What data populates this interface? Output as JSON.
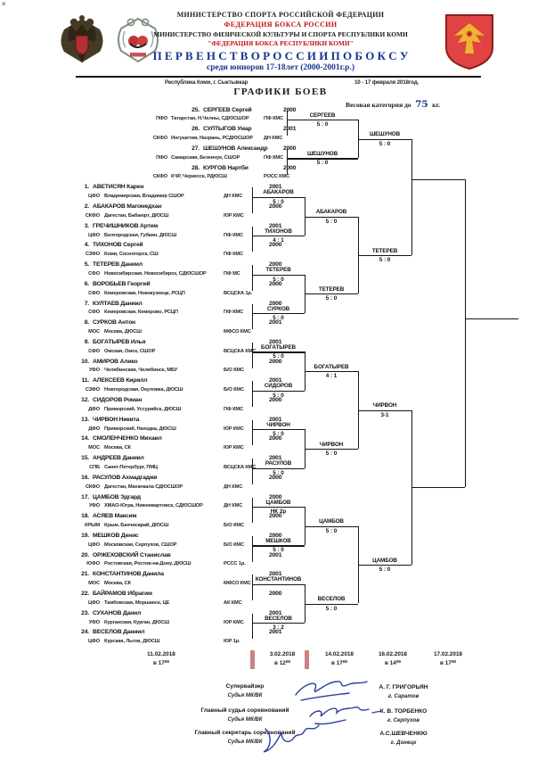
{
  "header": {
    "corner_mark": "×",
    "line1": "МИНИСТЕРСТВО СПОРТА РОССИЙСКОЙ ФЕДЕРАЦИИ",
    "line2": "ФЕДЕРАЦИЯ БОКСА РОССИИ",
    "line3": "МИНИСТЕРСТВО ФИЗИЧЕСКОЙ КУЛЬТУРЫ И СПОРТА РЕСПУБЛИКИ КОМИ",
    "line4": "\"ФЕДЕРАЦИЯ БОКСА РЕСПУБЛИКИ КОМИ\"",
    "title": "П Е Р В Е Н С Т В О   Р О С С И И   П О   Б О К С У",
    "subtitle": "среди юниоров 17-18лет (2000-2001г.р.)",
    "venue": "Республика Коми, г. Сыктывкар",
    "date_range": "10 - 17 февраля 2018год.",
    "section_title": "ГРАФИКИ БОЕВ",
    "weight_prefix": "Весовая категория до",
    "weight_value": "75",
    "weight_suffix": "кг."
  },
  "fighters": [
    {
      "no": "25.",
      "name": "СЕРГЕЕВ Сергей",
      "year": "2000",
      "code": "ПФО",
      "region": "Татарстан, Н.Челны, СДЮСШОР",
      "qual": "ПФ КМС"
    },
    {
      "no": "26.",
      "name": "СУЛТЫГОВ Умар",
      "year": "2001",
      "code": "СКФО",
      "region": "Ингушетия, Назрань, РСДЮСШОР",
      "qual": "ДН КМС"
    },
    {
      "no": "27.",
      "name": "ШЕШУНОВ Александр",
      "year": "2000",
      "code": "ПФО",
      "region": "Самарская, Безенчук, СШОР",
      "qual": "ПФ КМС"
    },
    {
      "no": "28.",
      "name": "КУРГОВ Нартби",
      "year": "2000",
      "code": "СКФО",
      "region": "КЧР, Черкесск,  РДЮСШ",
      "qual": "РОСС КМС"
    },
    {
      "no": "1.",
      "name": "АВЕТИСЯН Карен",
      "year": "2001",
      "code": "ЦФО",
      "region": "Владимирская, Владимир СШОР",
      "qual": "ДН  КМС"
    },
    {
      "no": "2.",
      "name": "АБАКАРОВ Магомедхан",
      "year": "2000",
      "code": "СКФО",
      "region": "Дагестан, Бабаюрт,  ДЮСШ",
      "qual": "ЮР КМС"
    },
    {
      "no": "3.",
      "name": "ГРЕЧИШНИКОВ Артем",
      "year": "2001",
      "code": "ЦФО",
      "region": "Белгородская, Губкин, ДЮСШ",
      "qual": "ПФ  КМС"
    },
    {
      "no": "4.",
      "name": "ТИХОНОВ Сергей",
      "year": "2000",
      "code": "СЗФО",
      "region": "Коми,  Сосногорск,  СШ",
      "qual": "ПФ КМС"
    },
    {
      "no": "5.",
      "name": "ТЕТЕРЕВ Даниил",
      "year": "2000",
      "code": "СФО",
      "region": "Новосибирская, Новосибирск, СДЮСШОР",
      "qual": "ПФ  МС"
    },
    {
      "no": "6.",
      "name": "ВОРОБЬЕВ Георгий",
      "year": "2000",
      "code": "СФО",
      "region": "Кемеровская, Новокузнецк, РСЦП",
      "qual": "ВСЦСКА  1р."
    },
    {
      "no": "7.",
      "name": "КУЛТАЕВ Даниил",
      "year": "2000",
      "code": "СФО",
      "region": "Кемеровская, Кемерово, РСЦП",
      "qual": "ПФ КМС"
    },
    {
      "no": "8.",
      "name": "СУРКОВ Антон",
      "year": "2001",
      "code": "МОС",
      "region": "Москва, ДЮСШ",
      "qual": "МФСО КМС"
    },
    {
      "no": "9.",
      "name": "БОГАТЫРЕВ Илья",
      "year": "2001",
      "code": "СФО",
      "region": "Омская, Омск, СШОР",
      "qual": "ВСЦСКА КМС"
    },
    {
      "no": "10.",
      "name": "АМИРОВ Алико",
      "year": "2000",
      "code": "УФО",
      "region": "Челябинская, Челябинск, МБУ",
      "qual": "Б/О КМС"
    },
    {
      "no": "11.",
      "name": "АЛЕКСЕЕВ Кирилл",
      "year": "2001",
      "code": "СЗФО",
      "region": "Новгородская,  Окуловка, ДЮСШ",
      "qual": "Б/О КМС"
    },
    {
      "no": "12.",
      "name": "СИДОРОВ Роман",
      "year": "2000",
      "code": "ДФО",
      "region": "Приморский, Уссурийск, ДЮСШ",
      "qual": "ПФ КМС"
    },
    {
      "no": "13.",
      "name": "ЧИРВОН Никита",
      "year": "2001",
      "code": "ДФО",
      "region": "Приморский, Находка, ДЮСШ",
      "qual": "ЮР КМС"
    },
    {
      "no": "14.",
      "name": "СМОЛЕНЧЕНКО Михаил",
      "year": "2000",
      "code": "МОС",
      "region": "Москва, СК",
      "qual": "ЮР КМС"
    },
    {
      "no": "15.",
      "name": "АНДРЕЕВ Даниил",
      "year": "2001",
      "code": "СПБ",
      "region": "Санкт-Петербург, ПМЦ",
      "qual": "ВСЦСКА КМС"
    },
    {
      "no": "16.",
      "name": "РАСУЛОВ Ахмадгаджи",
      "year": "2000",
      "code": "СКФО",
      "region": "Дагестан, Махачкала  СДЮСШОР",
      "qual": "ДН КМС"
    },
    {
      "no": "17.",
      "name": "ЦАМБОВ Эдгард",
      "year": "2000",
      "code": "УФО",
      "region": "ХМАО-Югра, Нижневартовск, СДЮСШОР",
      "qual": "ДН КМС"
    },
    {
      "no": "18.",
      "name": "АСЯЕВ Максим",
      "year": "2000",
      "code": "КРЫМ",
      "region": "Крым, Бахчисарай, ДЮСШ",
      "qual": "Б/О КМС"
    },
    {
      "no": "19.",
      "name": "МЕШКОВ Денис",
      "year": "2000",
      "code": "ЦФО",
      "region": "Московская, Серпухов, СШОР",
      "qual": "Б/О КМС"
    },
    {
      "no": "20.",
      "name": "ОРЖЕХОВСКИЙ Станислав",
      "year": "2001",
      "code": "ЮФО",
      "region": "Ростовская, Ростов-на-Дону, ДЮСШ",
      "qual": "РССС 1р."
    },
    {
      "no": "21.",
      "name": "КОНСТАНТИНОВ Данила",
      "year": "2001",
      "code": "МОС",
      "region": "Москва, СК",
      "qual": "МФСО КМС"
    },
    {
      "no": "22.",
      "name": "БАЙРАМОВ Ибрагим",
      "year": "2000",
      "code": "ЦФО",
      "region": "Тамбовская, Моршанск, ЦЕ",
      "qual": "АК  КМС"
    },
    {
      "no": "23.",
      "name": "СУХАНОВ Данил",
      "year": "2001",
      "code": "УФО",
      "region": "Курганская, Курган, ДЮСШ",
      "qual": "ЮР  КМС"
    },
    {
      "no": "24.",
      "name": "ВЕСЕЛОВ Даниил",
      "year": "2001",
      "code": "ЦФО",
      "region": "Курская, Льгов, ДЮСШ",
      "qual": "ЮР  1р."
    }
  ],
  "matches": {
    "r1": [
      {
        "winner": "СЕРГЕЕВ",
        "score": "5 : 0"
      },
      {
        "winner": "ШЕШУНОВ",
        "score": "5 : 0"
      },
      {
        "winner": "АБАКАРОВ",
        "score": "5 : 0"
      },
      {
        "winner": "ТИХОНОВ",
        "score": "4 : 1"
      },
      {
        "winner": "ТЕТЕРЕВ",
        "score": "5 : 0"
      },
      {
        "winner": "СУРКОВ",
        "score": "5 : 0"
      },
      {
        "winner": "БОГАТЫРЕВ",
        "score": "5 : 0"
      },
      {
        "winner": "СИДОРОВ",
        "score": "5 : 0"
      },
      {
        "winner": "ЧИРВОН",
        "score": "5 : 0"
      },
      {
        "winner": "РАСУЛОВ",
        "score": "5 : 0"
      },
      {
        "winner": "ЦАМБОВ",
        "score": "НК 2р"
      },
      {
        "winner": "МЕШКОВ",
        "score": "5 : 0"
      },
      {
        "winner": "КОНСТАНТИНОВ",
        "score": ""
      },
      {
        "winner": "ВЕСЕЛОВ",
        "score": "3 : 2"
      }
    ],
    "r2": [
      {
        "winner": "ШЕШУНОВ",
        "score": "5 : 0"
      },
      {
        "winner": "АБАКАРОВ",
        "score": "5 : 0"
      },
      {
        "winner": "ТЕТЕРЕВ",
        "score": "5 : 0"
      },
      {
        "winner": "БОГАТЫРЕВ",
        "score": "4 : 1"
      },
      {
        "winner": "ЧИРВОН",
        "score": "5 : 0"
      },
      {
        "winner": "ЦАМБОВ",
        "score": "5 : 0"
      },
      {
        "winner": "ВЕСЕЛОВ",
        "score": "5 : 0"
      }
    ],
    "r3": [
      {
        "winner": "ТЕТЕРЕВ",
        "score": "5 : 0"
      },
      {
        "winner": "ЧИРВОН",
        "score": "3-1"
      },
      {
        "winner": "ЦАМБОВ",
        "score": "5 : 0"
      }
    ]
  },
  "schedule": [
    {
      "date": "11.02.2018",
      "time": "в 17⁰⁰"
    },
    {
      "date": "3.02.2018",
      "time": "в 12⁰⁰"
    },
    {
      "date": "14.02.2018",
      "time": "в 17⁰⁰"
    },
    {
      "date": "16.02.2018",
      "time": "в 14⁰⁰"
    },
    {
      "date": "17.02.2018",
      "time": "в 17⁰⁰"
    }
  ],
  "officials": [
    {
      "role": "Супервайзер",
      "role2": "Судья МК/ВК",
      "name": "А. Г. ГРИГОРЬЯН",
      "city": "г. Саратов"
    },
    {
      "role": "Главный судья соревнований",
      "role2": "Судья МК/ВК",
      "name": "К. В. ТОРБЕНКО",
      "city": "г. Серпухов"
    },
    {
      "role": "Главный секретарь соревнований",
      "role2": "Судья МК/ВК",
      "name": "А.С.ШЕВЧЕНКЮ",
      "city": "г. Донецк"
    }
  ]
}
